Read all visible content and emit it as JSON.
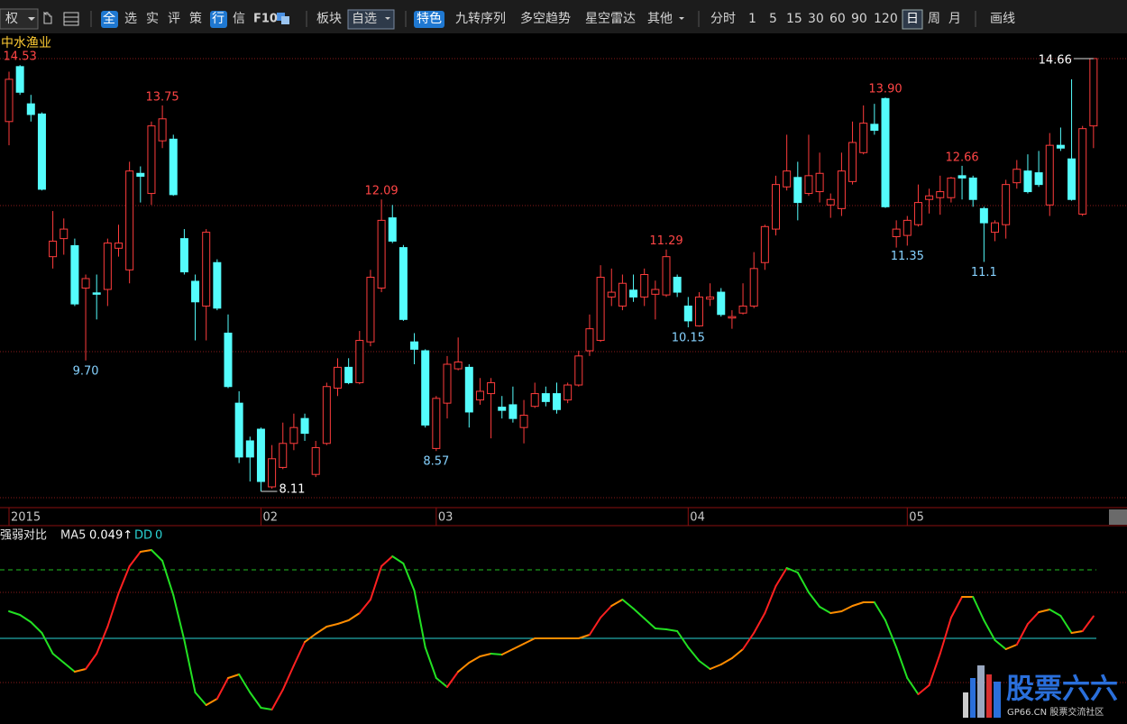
{
  "toolbar": {
    "items": [
      "权",
      "全",
      "选",
      "实",
      "评",
      "策",
      "行",
      "信",
      "F10",
      "板块",
      "自选",
      "特色",
      "九转序列",
      "多空趋势",
      "星空雷达",
      "其他",
      "分时",
      "1",
      "5",
      "15",
      "30",
      "60",
      "90",
      "120",
      "日",
      "周",
      "月",
      "画线"
    ]
  },
  "stock_name": "中水渔业",
  "chart_data": [
    {
      "type": "candlestick",
      "log_scale": true,
      "ylim": [
        8.04,
        14.75
      ],
      "up_color": "#ff3c3c",
      "down_color": "#54fcfc",
      "categories": [
        "2015",
        null,
        null,
        null,
        null,
        null,
        null,
        null,
        null,
        null,
        null,
        null,
        null,
        null,
        null,
        null,
        null,
        null,
        null,
        null,
        null,
        null,
        null,
        "02",
        null,
        null,
        null,
        null,
        null,
        null,
        null,
        null,
        null,
        null,
        null,
        null,
        null,
        null,
        null,
        "03",
        null,
        null,
        null,
        null,
        null,
        null,
        null,
        null,
        null,
        null,
        null,
        null,
        null,
        null,
        null,
        null,
        null,
        null,
        null,
        null,
        null,
        null,
        "04",
        null,
        null,
        null,
        null,
        null,
        null,
        null,
        null,
        null,
        null,
        null,
        null,
        null,
        null,
        null,
        null,
        null,
        null,
        null,
        "05",
        null,
        null,
        null,
        null,
        null,
        null,
        null,
        null,
        null,
        null,
        null,
        null,
        null,
        null,
        null,
        null,
        null
      ],
      "open": [
        13.45,
        14.5,
        13.78,
        13.59,
        11.18,
        11.46,
        11.35,
        10.71,
        10.64,
        10.69,
        11.31,
        10.98,
        12.53,
        12.19,
        13.1,
        13.13,
        11.46,
        10.81,
        10.45,
        11.09,
        10.07,
        9.15,
        8.69,
        8.83,
        8.16,
        8.38,
        8.66,
        8.96,
        8.3,
        8.66,
        9.34,
        9.61,
        9.41,
        9.95,
        10.71,
        11.79,
        11.32,
        9.95,
        9.83,
        8.6,
        9.15,
        9.59,
        9.61,
        9.19,
        9.27,
        9.1,
        9.13,
        8.85,
        9.11,
        9.27,
        9.27,
        9.19,
        9.38,
        9.83,
        9.97,
        10.58,
        10.45,
        10.68,
        10.58,
        10.62,
        10.61,
        10.87,
        10.45,
        10.17,
        10.55,
        10.65,
        10.28,
        10.35,
        10.45,
        11.09,
        11.61,
        12.3,
        12.46,
        12.19,
        12.22,
        12.0,
        11.94,
        12.39,
        12.89,
        13.4,
        13.88,
        11.49,
        11.51,
        11.68,
        12.09,
        12.12,
        12.12,
        12.49,
        12.45,
        11.94,
        11.56,
        11.68,
        12.37,
        12.57,
        12.54,
        12.0,
        13.02,
        12.78,
        11.85,
        13.37
      ],
      "high": [
        14.4,
        14.53,
        13.95,
        13.62,
        11.9,
        11.78,
        11.46,
        10.91,
        10.91,
        11.46,
        11.68,
        12.73,
        12.65,
        13.45,
        13.75,
        13.21,
        11.61,
        10.91,
        11.61,
        11.14,
        10.33,
        9.3,
        8.74,
        8.85,
        8.64,
        8.91,
        9.02,
        9.02,
        8.69,
        9.41,
        9.73,
        9.73,
        10.1,
        10.98,
        12.09,
        12.0,
        11.36,
        10.07,
        9.85,
        9.24,
        9.76,
        10.01,
        9.65,
        9.47,
        9.47,
        9.24,
        9.36,
        9.19,
        9.41,
        9.36,
        9.41,
        9.41,
        9.83,
        10.33,
        11.05,
        11.0,
        10.91,
        10.91,
        11.0,
        10.82,
        11.29,
        10.91,
        10.58,
        10.65,
        10.78,
        10.71,
        10.39,
        10.78,
        11.25,
        11.68,
        12.49,
        13.21,
        12.73,
        13.21,
        12.89,
        12.19,
        12.89,
        13.45,
        13.75,
        13.78,
        13.9,
        11.75,
        11.82,
        12.34,
        12.27,
        12.49,
        12.47,
        12.66,
        12.49,
        11.97,
        11.75,
        12.42,
        12.76,
        12.86,
        12.92,
        13.24,
        13.34,
        14.25,
        13.37,
        14.66
      ],
      "low": [
        13.02,
        13.95,
        13.45,
        12.24,
        11.0,
        11.21,
        10.45,
        9.7,
        10.26,
        10.45,
        11.18,
        10.78,
        12.04,
        12.0,
        12.97,
        12.15,
        10.91,
        9.97,
        9.97,
        10.39,
        9.34,
        8.43,
        8.22,
        8.11,
        8.14,
        8.36,
        8.58,
        8.69,
        8.27,
        8.64,
        9.24,
        9.39,
        9.39,
        9.89,
        10.65,
        11.39,
        10.24,
        9.65,
        8.85,
        8.57,
        8.96,
        9.57,
        8.85,
        9.13,
        8.72,
        8.96,
        8.91,
        8.66,
        9.09,
        9.11,
        9.02,
        9.15,
        9.36,
        9.76,
        9.95,
        10.45,
        10.39,
        10.51,
        10.45,
        10.26,
        10.58,
        10.58,
        10.15,
        10.16,
        10.45,
        10.3,
        10.13,
        10.33,
        10.42,
        10.98,
        11.51,
        12.24,
        11.75,
        12.15,
        12.04,
        11.79,
        11.82,
        12.34,
        12.86,
        13.21,
        11.95,
        11.32,
        11.35,
        11.65,
        11.86,
        11.84,
        12.04,
        12.09,
        11.97,
        11.1,
        11.42,
        11.46,
        12.27,
        12.19,
        12.3,
        11.82,
        12.92,
        12.07,
        11.82,
        12.97
      ],
      "close": [
        14.25,
        14.0,
        13.58,
        12.26,
        11.42,
        11.61,
        10.48,
        10.85,
        10.62,
        11.39,
        11.39,
        12.57,
        12.48,
        13.37,
        13.5,
        12.17,
        10.95,
        10.51,
        11.56,
        10.42,
        9.36,
        8.5,
        8.5,
        8.22,
        8.48,
        8.66,
        8.85,
        8.78,
        8.61,
        9.36,
        9.61,
        9.41,
        9.97,
        10.87,
        11.75,
        11.42,
        10.26,
        9.85,
        8.88,
        9.21,
        9.65,
        9.68,
        9.04,
        9.3,
        9.41,
        9.06,
        8.96,
        9.0,
        9.27,
        9.17,
        9.07,
        9.38,
        9.76,
        10.13,
        10.87,
        10.65,
        10.78,
        10.58,
        10.91,
        10.69,
        11.18,
        10.65,
        10.24,
        10.58,
        10.58,
        10.33,
        10.3,
        10.45,
        11.0,
        11.65,
        12.34,
        12.57,
        12.04,
        12.49,
        12.53,
        12.09,
        12.57,
        13.07,
        13.42,
        13.29,
        11.97,
        11.61,
        11.75,
        12.04,
        12.15,
        12.22,
        12.45,
        12.45,
        12.09,
        11.71,
        11.71,
        12.34,
        12.6,
        12.22,
        12.34,
        13.02,
        12.97,
        12.09,
        13.32,
        14.66
      ],
      "annotations": [
        14.53,
        13.75,
        {
          "value": 9.7,
          "label": "9.70"
        },
        8.11,
        12.09,
        8.57,
        11.29,
        10.15,
        {
          "value": 13.9,
          "label": "13.90"
        },
        11.35,
        11.1,
        12.66,
        14.66
      ]
    },
    {
      "type": "line",
      "title": "强弱对比",
      "ylim": [
        -0.184,
        0.21
      ],
      "colors": {
        "rise": "#ff2020",
        "slow": "#ff8c00",
        "fall": "#22e022"
      },
      "series": [
        {
          "name": "MA5",
          "values": [
            0.06,
            0.052,
            0.036,
            0.012,
            -0.034,
            -0.054,
            -0.074,
            -0.068,
            -0.034,
            0.026,
            0.1,
            0.16,
            0.192,
            0.196,
            0.172,
            0.096,
            -0.004,
            -0.12,
            -0.148,
            -0.134,
            -0.088,
            -0.08,
            -0.12,
            -0.154,
            -0.158,
            -0.114,
            -0.06,
            -0.008,
            0.01,
            0.026,
            0.032,
            0.04,
            0.056,
            0.086,
            0.16,
            0.182,
            0.166,
            0.106,
            -0.02,
            -0.088,
            -0.108,
            -0.074,
            -0.054,
            -0.04,
            -0.034,
            -0.036,
            -0.024,
            -0.012,
            0,
            0,
            0,
            0,
            0,
            0.008,
            0.046,
            0.072,
            0.086,
            0.066,
            0.044,
            0.022,
            0.02,
            0.016,
            -0.02,
            -0.05,
            -0.068,
            -0.058,
            -0.044,
            -0.024,
            0.012,
            0.056,
            0.116,
            0.156,
            0.146,
            0.102,
            0.07,
            0.056,
            0.06,
            0.072,
            0.08,
            0.08,
            0.04,
            -0.02,
            -0.088,
            -0.124,
            -0.104,
            -0.034,
            0.046,
            0.092,
            0.092,
            0.04,
            -0.004,
            -0.024,
            -0.014,
            0.032,
            0.058,
            0.064,
            0.05,
            0.012,
            0.016,
            0.049
          ],
          "value_label": "0.049↑"
        }
      ],
      "dd": {
        "name": "DD",
        "value": 0,
        "color": "#2ad4d4"
      }
    }
  ],
  "watermark": {
    "title": "股票六六",
    "subtitle": "GP66.CN 股票交流社区"
  }
}
